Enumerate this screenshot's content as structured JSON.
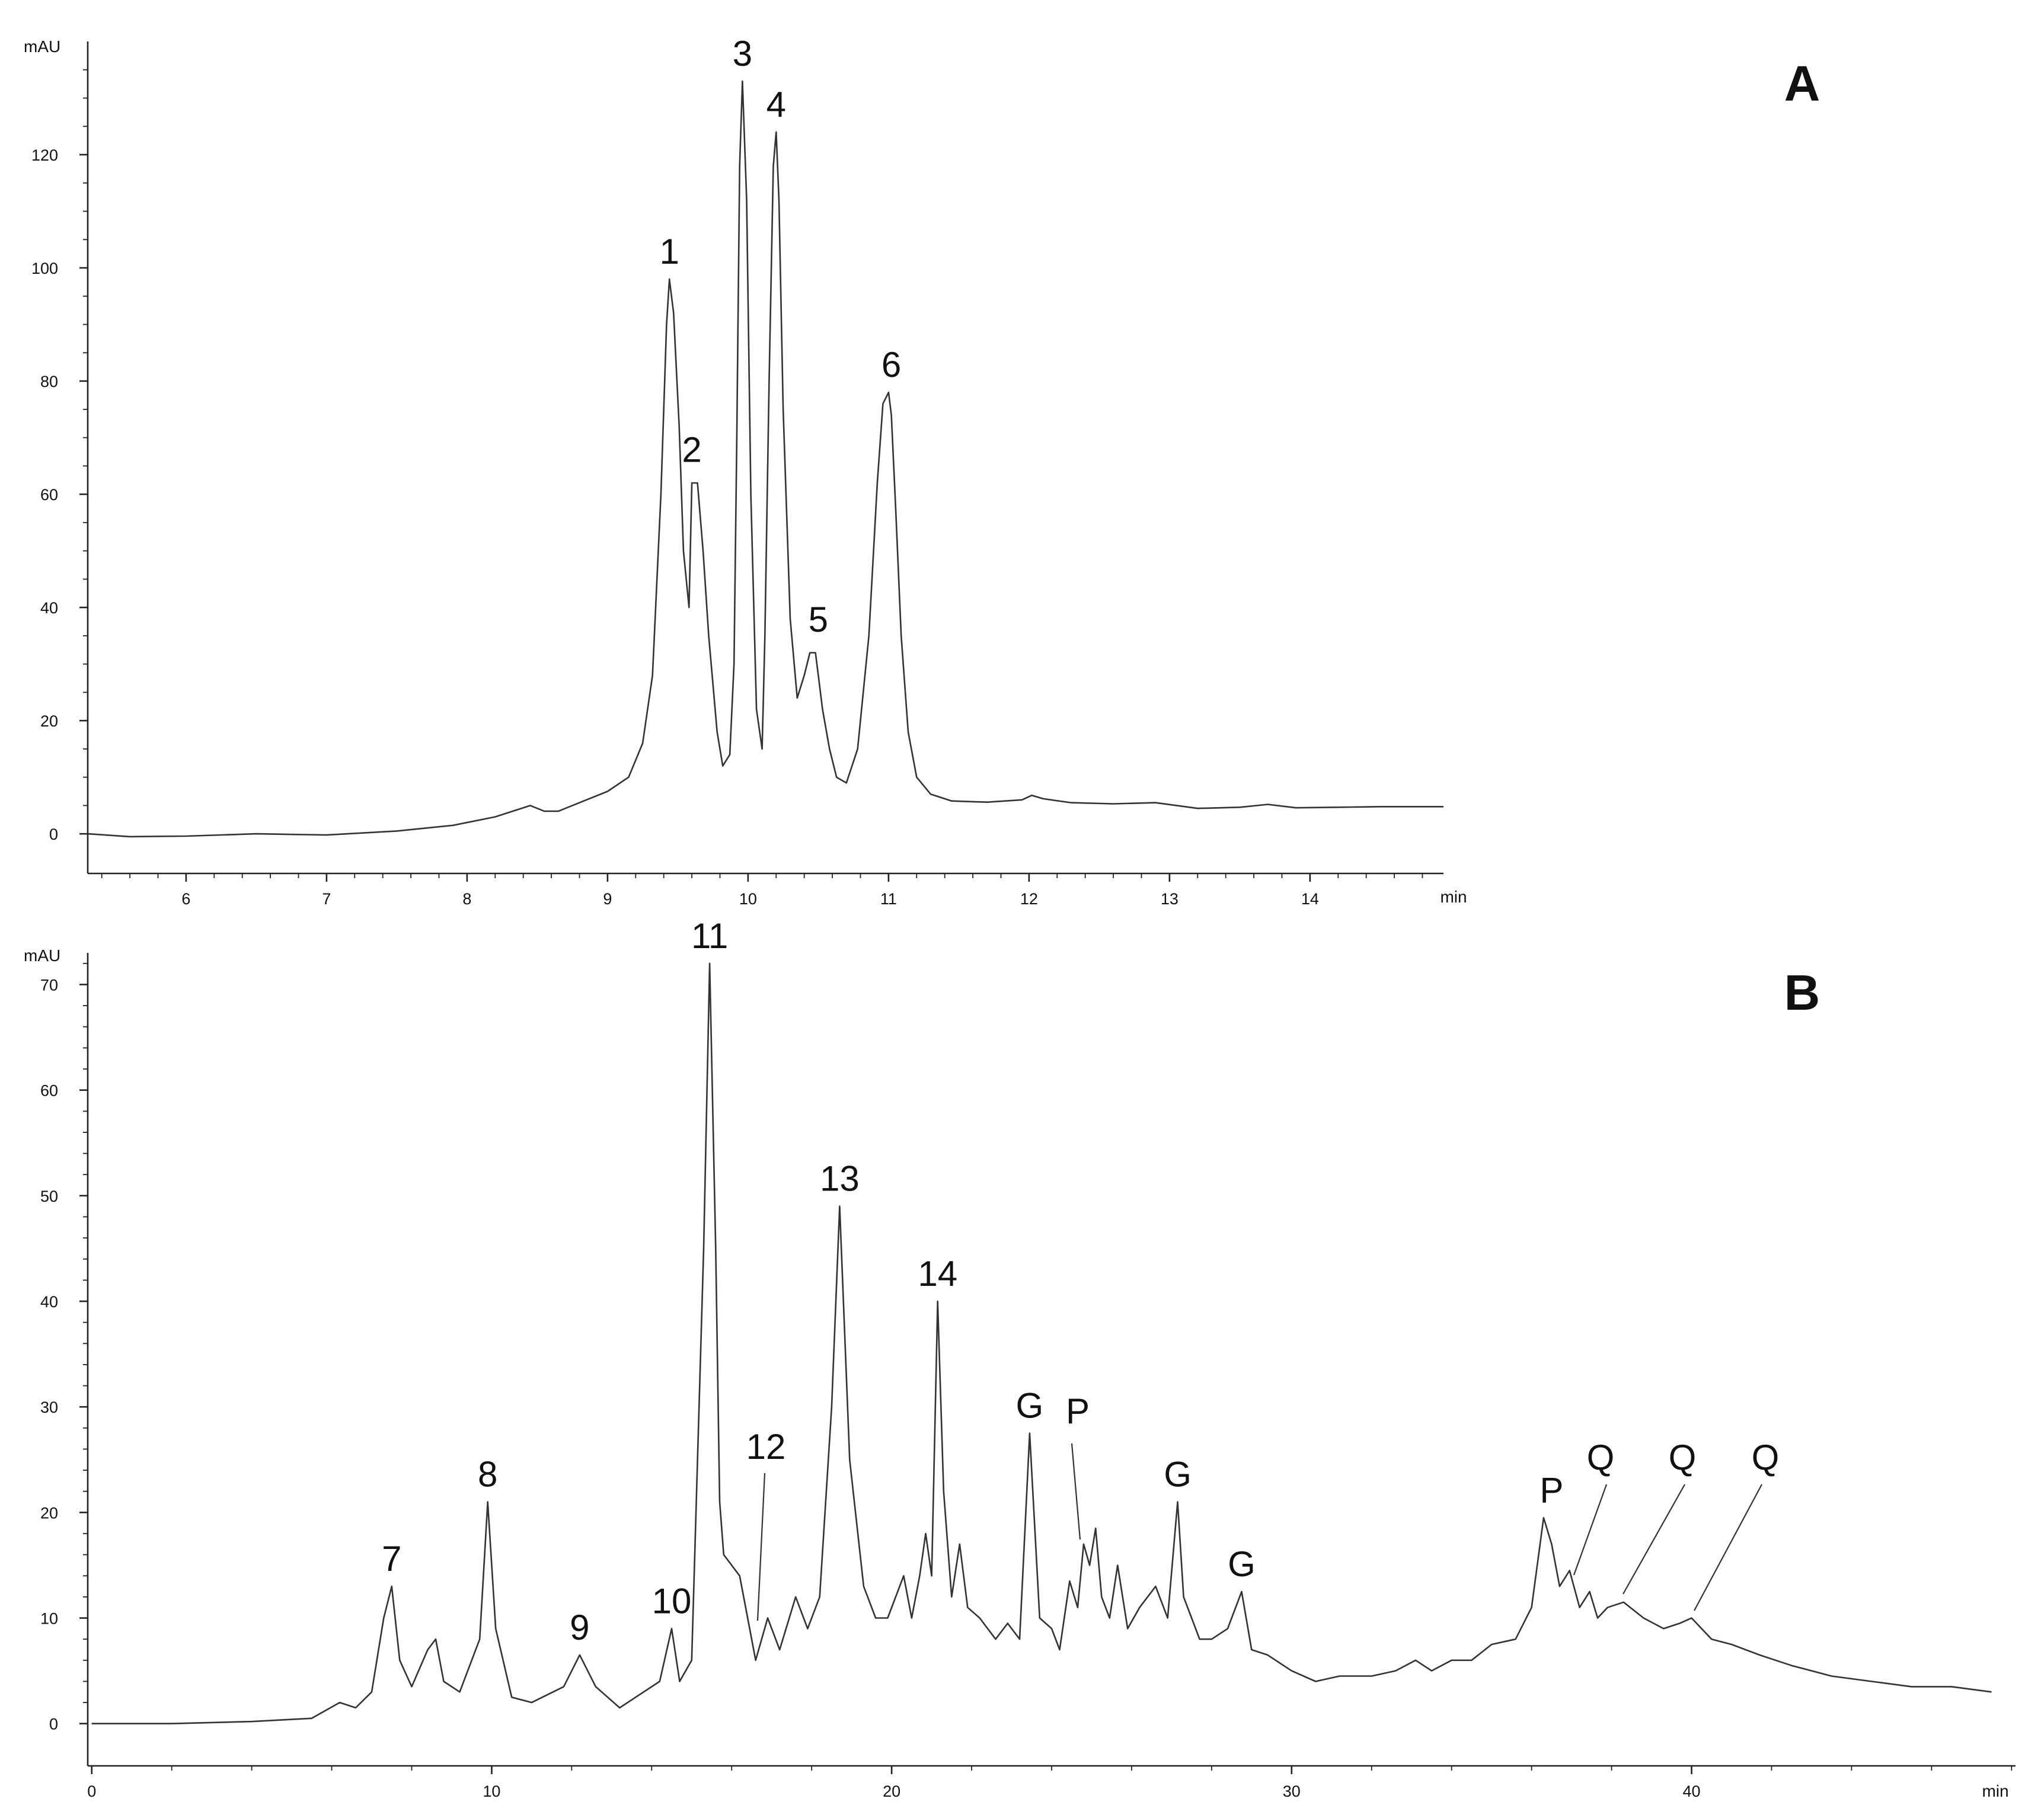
{
  "chart_data": [
    {
      "type": "line",
      "panel_label": "A",
      "xlabel": "min",
      "ylabel": "mAU",
      "xlim": [
        5.3,
        14.95
      ],
      "ylim": [
        -7,
        140
      ],
      "xticks": [
        6,
        7,
        8,
        9,
        10,
        11,
        12,
        13,
        14
      ],
      "yticks": [
        0,
        20,
        40,
        60,
        80,
        100,
        120
      ],
      "series": [
        {
          "x": [
            5.3,
            5.6,
            6.0,
            6.5,
            7.0,
            7.5,
            7.9,
            8.2,
            8.45,
            8.55,
            8.65,
            8.8,
            9.0,
            9.15,
            9.25,
            9.32,
            9.38,
            9.42,
            9.44,
            9.47,
            9.51,
            9.54,
            9.58,
            9.6,
            9.64,
            9.68,
            9.72,
            9.78,
            9.82,
            9.87,
            9.9,
            9.92,
            9.94,
            9.96,
            9.99,
            10.02,
            10.06,
            10.1,
            10.12,
            10.15,
            10.18,
            10.2,
            10.22,
            10.25,
            10.3,
            10.35,
            10.4,
            10.44,
            10.48,
            10.5,
            10.53,
            10.58,
            10.63,
            10.7,
            10.78,
            10.86,
            10.92,
            10.96,
            11.0,
            11.02,
            11.05,
            11.09,
            11.14,
            11.2,
            11.3,
            11.45,
            11.7,
            11.95,
            12.02,
            12.1,
            12.3,
            12.6,
            12.9,
            13.2,
            13.5,
            13.7,
            13.9,
            14.2,
            14.5,
            14.95
          ],
          "y": [
            0,
            -0.5,
            -0.4,
            0,
            -0.2,
            0.5,
            1.5,
            3,
            5,
            4,
            4,
            5.5,
            7.5,
            10,
            16,
            28,
            60,
            90,
            98,
            92,
            72,
            50,
            40,
            62,
            62,
            50,
            35,
            18,
            12,
            14,
            30,
            70,
            118,
            133,
            112,
            60,
            22,
            15,
            35,
            80,
            118,
            124,
            112,
            75,
            38,
            24,
            28,
            32,
            32,
            28,
            22,
            15,
            10,
            9,
            15,
            35,
            62,
            76,
            78,
            74,
            58,
            35,
            18,
            10,
            7,
            5.8,
            5.6,
            6,
            6.8,
            6.2,
            5.5,
            5.3,
            5.5,
            4.5,
            4.7,
            5.2,
            4.6,
            4.7,
            4.8,
            4.8
          ]
        }
      ],
      "annotations": [
        {
          "text": "1",
          "x": 9.44,
          "y": 98
        },
        {
          "text": "2",
          "x": 9.6,
          "y": 63
        },
        {
          "text": "3",
          "x": 9.96,
          "y": 133
        },
        {
          "text": "4",
          "x": 10.2,
          "y": 124
        },
        {
          "text": "5",
          "x": 10.5,
          "y": 33
        },
        {
          "text": "6",
          "x": 11.02,
          "y": 78
        }
      ]
    },
    {
      "type": "line",
      "panel_label": "B",
      "xlabel": "min",
      "ylabel": "mAU",
      "xlim": [
        -0.1,
        48.1
      ],
      "ylim": [
        -4,
        73
      ],
      "xticks": [
        0,
        10,
        20,
        30,
        40
      ],
      "yticks": [
        0,
        10,
        20,
        30,
        40,
        50,
        60,
        70
      ],
      "series": [
        {
          "x": [
            0,
            2,
            4,
            5.5,
            6.2,
            6.6,
            7.0,
            7.3,
            7.5,
            7.7,
            8.0,
            8.4,
            8.6,
            8.8,
            9.2,
            9.7,
            9.9,
            10.1,
            10.5,
            11.0,
            11.8,
            12.2,
            12.6,
            13.2,
            13.6,
            14.2,
            14.5,
            14.7,
            15.0,
            15.3,
            15.45,
            15.6,
            15.7,
            15.8,
            16.2,
            16.6,
            16.9,
            17.2,
            17.6,
            17.9,
            18.2,
            18.5,
            18.7,
            18.95,
            19.3,
            19.6,
            19.9,
            20.3,
            20.5,
            20.7,
            20.85,
            21.0,
            21.15,
            21.3,
            21.5,
            21.7,
            21.9,
            22.2,
            22.6,
            22.9,
            23.2,
            23.45,
            23.7,
            24.0,
            24.2,
            24.45,
            24.65,
            24.8,
            24.95,
            25.1,
            25.25,
            25.45,
            25.65,
            25.9,
            26.2,
            26.6,
            26.9,
            27.15,
            27.3,
            27.5,
            27.7,
            28.0,
            28.4,
            28.75,
            29.0,
            29.4,
            30.0,
            30.6,
            31.2,
            32.0,
            32.6,
            33.1,
            33.5,
            34.0,
            34.5,
            35.0,
            35.6,
            36.0,
            36.3,
            36.5,
            36.7,
            36.95,
            37.2,
            37.45,
            37.65,
            37.9,
            38.3,
            38.8,
            39.3,
            39.7,
            40.0,
            40.5,
            41.0,
            41.7,
            42.5,
            43.5,
            44.5,
            45.5,
            46.5,
            47.5
          ],
          "y": [
            0,
            0,
            0.2,
            0.5,
            2,
            1.5,
            3,
            10,
            13,
            6,
            3.5,
            7,
            8,
            4,
            3,
            8,
            21,
            9,
            2.5,
            2,
            3.5,
            6.5,
            3.5,
            1.5,
            2.5,
            4,
            9,
            4,
            6,
            45,
            72,
            45,
            21,
            16,
            14,
            6,
            10,
            7,
            12,
            9,
            12,
            30,
            49,
            25,
            13,
            10,
            10,
            14,
            10,
            14,
            18,
            14,
            40,
            22,
            12,
            17,
            11,
            10,
            8,
            9.5,
            8,
            27.5,
            10,
            9,
            7,
            13.5,
            11,
            17,
            15,
            18.5,
            12,
            10,
            15,
            9,
            11,
            13,
            10,
            21,
            12,
            10,
            8,
            8,
            9,
            12.5,
            7,
            6.5,
            5,
            4,
            4.5,
            4.5,
            5,
            6,
            5,
            6,
            6,
            7.5,
            8,
            11,
            19.5,
            17,
            13,
            14.5,
            11,
            12.5,
            10,
            11,
            11.5,
            10,
            9,
            9.5,
            10,
            8,
            7.5,
            6.5,
            5.5,
            4.5,
            4,
            3.5,
            3.5,
            3
          ]
        }
      ],
      "annotations": [
        {
          "text": "7",
          "x": 7.5,
          "y": 13
        },
        {
          "text": "8",
          "x": 9.9,
          "y": 21
        },
        {
          "text": "9",
          "x": 12.2,
          "y": 6.5
        },
        {
          "text": "10",
          "x": 14.5,
          "y": 9
        },
        {
          "text": "11",
          "x": 15.45,
          "y": 72
        },
        {
          "text": "12",
          "x": 17.0,
          "y": 10,
          "leader": true
        },
        {
          "text": "13",
          "x": 18.7,
          "y": 49
        },
        {
          "text": "14",
          "x": 21.15,
          "y": 40
        },
        {
          "text": "G",
          "x": 23.45,
          "y": 27.5
        },
        {
          "text": "P",
          "x": 24.95,
          "y": 18.5,
          "leader": true
        },
        {
          "text": "G",
          "x": 27.15,
          "y": 21
        },
        {
          "text": "G",
          "x": 28.75,
          "y": 12.5
        },
        {
          "text": "P",
          "x": 36.5,
          "y": 19.5
        },
        {
          "text": "Q",
          "x": 37.6,
          "y": 16,
          "leader": true
        },
        {
          "text": "Q",
          "x": 39.0,
          "y": 13,
          "leader": true
        },
        {
          "text": "Q",
          "x": 40.4,
          "y": 11,
          "leader": true
        }
      ]
    }
  ]
}
